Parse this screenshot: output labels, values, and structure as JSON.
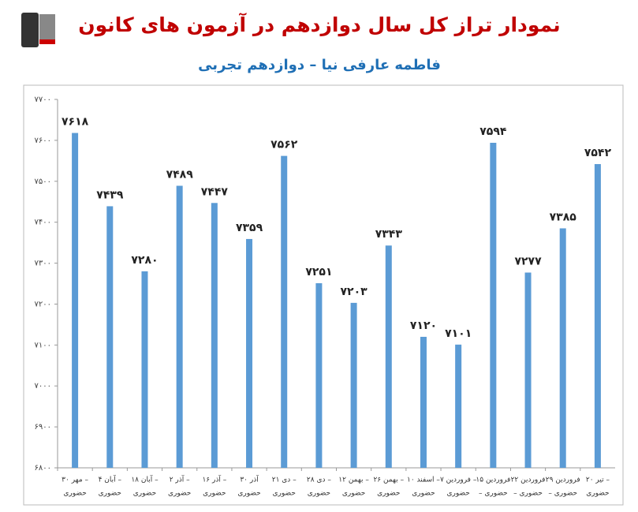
{
  "chart_data": {
    "type": "bar",
    "title": "نمودار تراز کل سال دوازدهم در آزمون های کانون",
    "subtitle": "فاطمه عارفی نیا – دوازدهم تجربی",
    "categories": [
      [
        "۳۰ مهر –",
        "حضوری"
      ],
      [
        "۴ آبان –",
        "حضوری"
      ],
      [
        "۱۸ آبان –",
        "حضوری"
      ],
      [
        "۲ آذر –",
        "حضوری"
      ],
      [
        "۱۶ آذر –",
        "حضوری"
      ],
      [
        "۳۰ آذر",
        "حضوری"
      ],
      [
        "۲۱ دی –",
        "حضوری"
      ],
      [
        "۲۸ دی –",
        "حضوری"
      ],
      [
        "۱۲ بهمن –",
        "حضوری"
      ],
      [
        "۲۶ بهمن –",
        "حضوری"
      ],
      [
        "۱۰ اسفند –",
        "حضوری"
      ],
      [
        "۷ فروردین –",
        "حضوری"
      ],
      [
        "۱۵ فروردین",
        "– حضوری"
      ],
      [
        "۲۲ فروردین",
        "– حضوری"
      ],
      [
        "۲۹ فروردین",
        "– حضوری"
      ],
      [
        "۲۰ تیر –",
        "حضوری"
      ]
    ],
    "values": [
      7618,
      7439,
      7280,
      7489,
      7447,
      7359,
      7562,
      7251,
      7203,
      7343,
      7120,
      7101,
      7594,
      7277,
      7385,
      7542
    ],
    "value_labels": [
      "۷۶۱۸",
      "۷۴۳۹",
      "۷۲۸۰",
      "۷۴۸۹",
      "۷۴۴۷",
      "۷۳۵۹",
      "۷۵۶۲",
      "۷۲۵۱",
      "۷۲۰۳",
      "۷۳۴۳",
      "۷۱۲۰",
      "۷۱۰۱",
      "۷۵۹۴",
      "۷۲۷۷",
      "۷۳۸۵",
      "۷۵۴۲"
    ],
    "color": "#5b9bd5",
    "ylim": [
      6800,
      7700
    ],
    "yticks": [
      {
        "value": 6800,
        "label": "۶۸۰۰"
      },
      {
        "value": 6900,
        "label": "۶۹۰۰"
      },
      {
        "value": 7000,
        "label": "۷۰۰۰"
      },
      {
        "value": 7100,
        "label": "۷۱۰۰"
      },
      {
        "value": 7200,
        "label": "۷۲۰۰"
      },
      {
        "value": 7300,
        "label": "۷۳۰۰"
      },
      {
        "value": 7400,
        "label": "۷۴۰۰"
      },
      {
        "value": 7500,
        "label": "۷۵۰۰"
      },
      {
        "value": 7600,
        "label": "۷۶۰۰"
      },
      {
        "value": 7700,
        "label": "۷۷۰۰"
      }
    ],
    "grid": false
  }
}
